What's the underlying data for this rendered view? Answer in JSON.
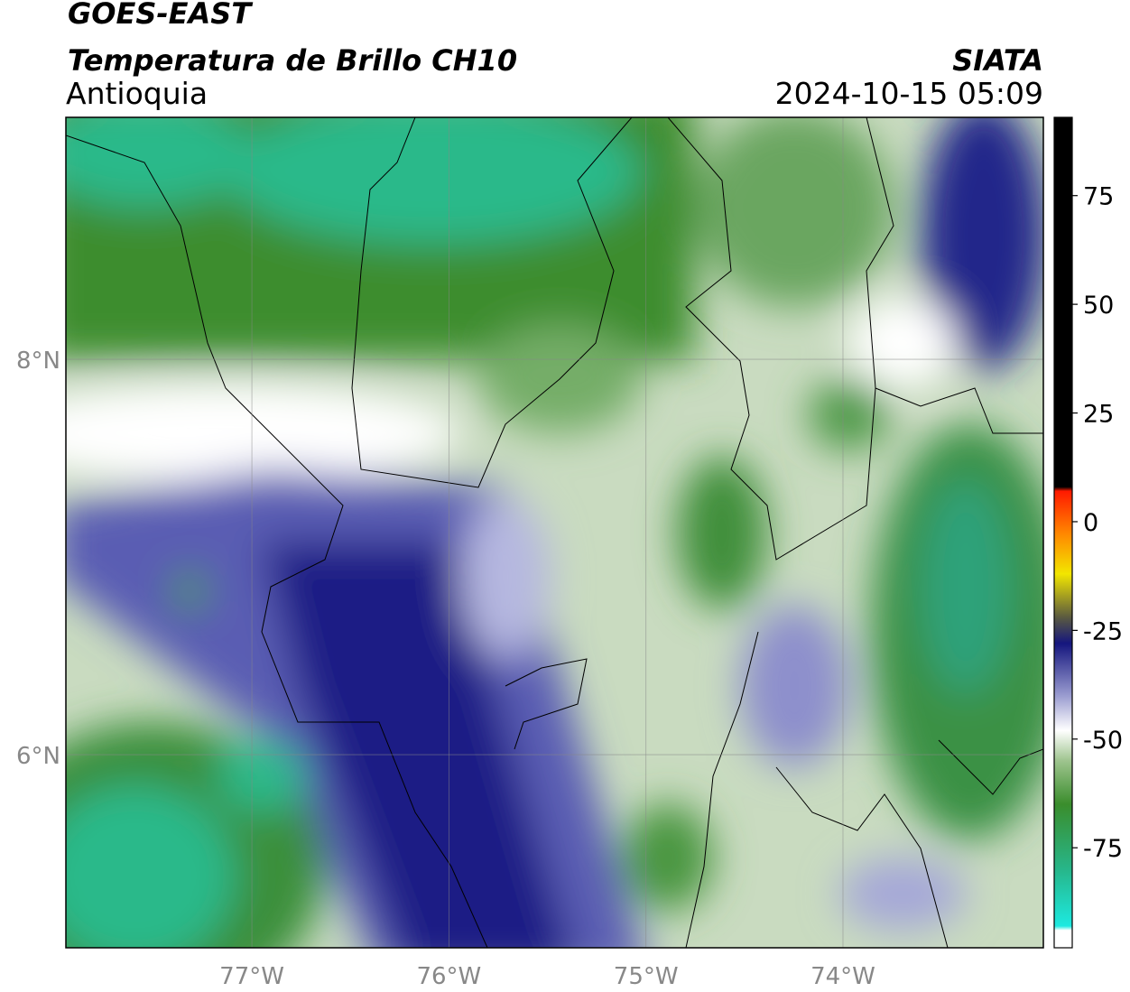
{
  "title": "GOES-EAST",
  "subtitle": "Temperatura de Brillo CH10",
  "region": "Antioquia",
  "source": "SIATA",
  "datetime": "2024-10-15 05:09",
  "map": {
    "xlim": [
      -77.944,
      -72.983
    ],
    "ylim": [
      5.023,
      9.224
    ],
    "xticks": [
      {
        "value": -77,
        "label": "77°W"
      },
      {
        "value": -76,
        "label": "76°W"
      },
      {
        "value": -75,
        "label": "75°W"
      },
      {
        "value": -74,
        "label": "74°W"
      }
    ],
    "yticks": [
      {
        "value": 6,
        "label": "6°N"
      },
      {
        "value": 8,
        "label": "8°N"
      }
    ],
    "grid": true
  },
  "colorbar": {
    "lim": [
      -98,
      93
    ],
    "ticks": [
      -75,
      -50,
      -25,
      0,
      25,
      50,
      75
    ],
    "stops": [
      {
        "value": -98,
        "color": "#ffffff"
      },
      {
        "value": -94,
        "color": "#ffffff"
      },
      {
        "value": -93,
        "color": "#1de9e0"
      },
      {
        "value": -80,
        "color": "#27b68a"
      },
      {
        "value": -65,
        "color": "#3a8d2c"
      },
      {
        "value": -55,
        "color": "#9ec48e"
      },
      {
        "value": -48,
        "color": "#ffffff"
      },
      {
        "value": -40,
        "color": "#9a9cd0"
      },
      {
        "value": -28,
        "color": "#15167e"
      },
      {
        "value": -22,
        "color": "#5a5a40"
      },
      {
        "value": -12,
        "color": "#f2e600"
      },
      {
        "value": -3,
        "color": "#ff8a00"
      },
      {
        "value": 7,
        "color": "#ff1a00"
      },
      {
        "value": 8,
        "color": "#000000"
      },
      {
        "value": 93,
        "color": "#000000"
      }
    ]
  }
}
